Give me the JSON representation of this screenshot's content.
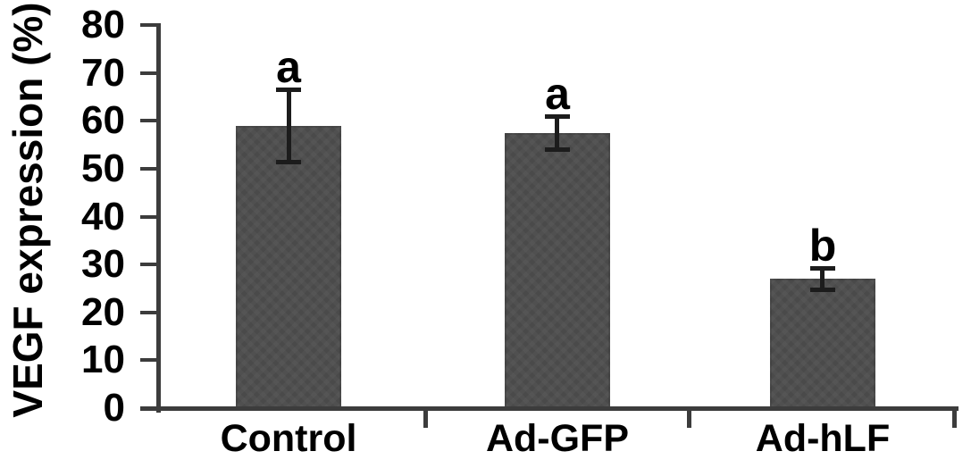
{
  "chart_data": {
    "type": "bar",
    "title": "",
    "xlabel": "",
    "ylabel": "VEGF expression (%)",
    "categories": [
      "Control",
      "Ad-GFP",
      "Ad-hLF"
    ],
    "values": [
      59,
      57.5,
      27
    ],
    "error_bars": [
      7.5,
      3.5,
      2.2
    ],
    "significance_labels": [
      "a",
      "a",
      "b"
    ],
    "ylim": [
      0,
      80
    ],
    "yticks": [
      0,
      10,
      20,
      30,
      40,
      50,
      60,
      70,
      80
    ],
    "grid": false,
    "legend_position": "none",
    "colors": {
      "bar": "#4a4a4a",
      "axis": "#3c3c3c",
      "error_bar": "#1c1c1c",
      "text": "#000000",
      "background": "#ffffff"
    }
  }
}
